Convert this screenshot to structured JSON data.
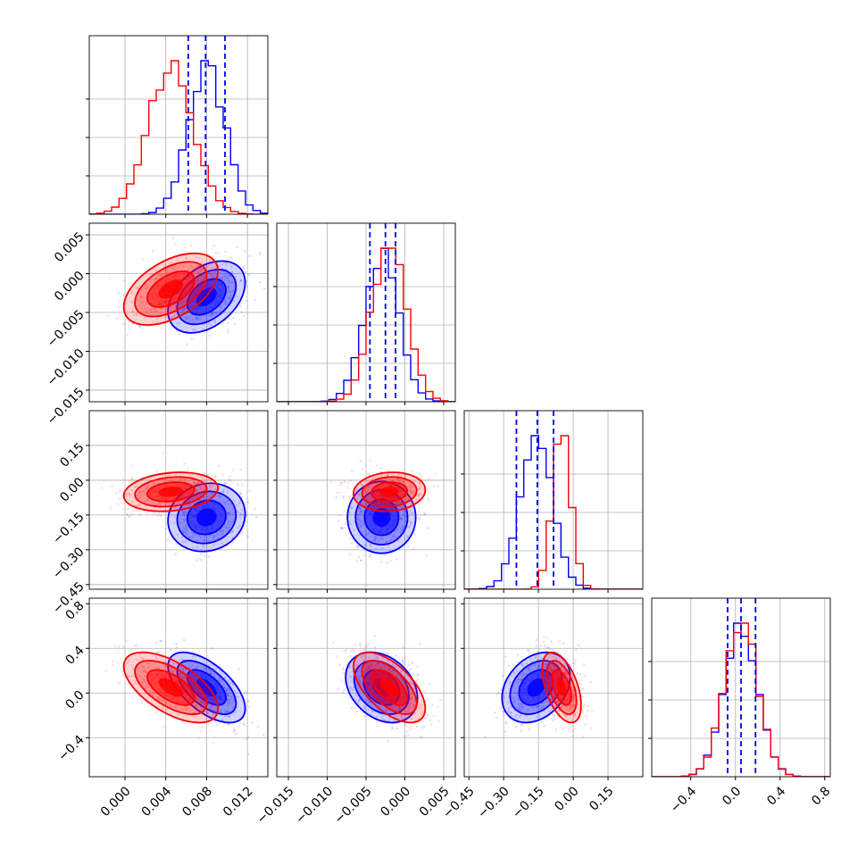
{
  "colors": {
    "series_a": "#0000ff",
    "series_b": "#ff0000",
    "grid": "#b0b0b0",
    "frame": "#000000"
  },
  "chart_data": {
    "type": "corner",
    "grid": true,
    "legend": "none",
    "dimensions": [
      {
        "range": [
          -0.0035,
          0.014
        ],
        "ticks": [
          "0.000",
          "0.004",
          "0.008",
          "0.012"
        ],
        "tick_values": [
          0.0,
          0.004,
          0.008,
          0.012
        ]
      },
      {
        "range": [
          -0.0165,
          0.0065
        ],
        "ticks": [
          "−0.015",
          "−0.010",
          "−0.005",
          "0.000",
          "0.005"
        ],
        "tick_values": [
          -0.015,
          -0.01,
          -0.005,
          0.0,
          0.005
        ]
      },
      {
        "range": [
          -0.47,
          0.3
        ],
        "ticks": [
          "−0.45",
          "−0.30",
          "−0.15",
          "0.00",
          "0.15"
        ],
        "tick_values": [
          -0.45,
          -0.3,
          -0.15,
          0.0,
          0.15
        ]
      },
      {
        "range": [
          -0.75,
          0.85
        ],
        "ticks": [
          "−0.4",
          "0.0",
          "0.4",
          "0.8"
        ],
        "tick_values": [
          -0.4,
          0.0,
          0.4,
          0.8
        ]
      }
    ],
    "series": [
      {
        "color": "#0000ff",
        "mean": [
          0.008,
          -0.003,
          -0.16,
          0.05
        ],
        "std": [
          0.0018,
          0.0022,
          0.07,
          0.15
        ],
        "quantile_lines": [
          [
            0.0062,
            0.0079,
            0.0098
          ],
          [
            -0.0045,
            -0.0025,
            -0.0012
          ],
          [
            -0.245,
            -0.155,
            -0.085
          ],
          [
            -0.07,
            0.05,
            0.18
          ]
        ],
        "correlations": {
          "1-0": 0.4,
          "2-0": 0.1,
          "2-1": 0.0,
          "3-0": -0.6,
          "3-1": -0.3,
          "3-2": 0.3
        }
      },
      {
        "color": "#ff0000",
        "mean": [
          0.0045,
          -0.002,
          -0.05,
          0.05
        ],
        "std": [
          0.0022,
          0.0022,
          0.04,
          0.15
        ],
        "correlations": {
          "1-0": 0.5,
          "2-0": 0.2,
          "2-1": 0.1,
          "3-0": -0.6,
          "3-1": -0.6,
          "3-2": -0.5
        }
      }
    ]
  }
}
